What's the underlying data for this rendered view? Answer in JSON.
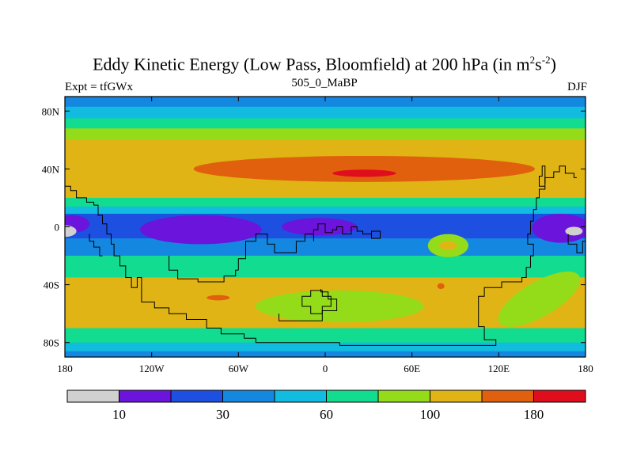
{
  "chart_data": {
    "type": "heatmap",
    "title": "Eddy Kinetic Energy (Low Pass, Bloomfield) at 200 hPa (in m",
    "title_units_exp1": "2",
    "title_units_mid": "s",
    "title_units_exp2": "-2",
    "title_close": ")",
    "left_subtitle": "Expt = tfGWx",
    "center_subtitle": "505_0_MaBP",
    "right_subtitle": "DJF",
    "xlim": [
      -180,
      180
    ],
    "ylim": [
      -90,
      90
    ],
    "x_ticks": [
      {
        "value": -180,
        "label": "180"
      },
      {
        "value": -120,
        "label": "120W"
      },
      {
        "value": -60,
        "label": "60W"
      },
      {
        "value": 0,
        "label": "0"
      },
      {
        "value": 60,
        "label": "60E"
      },
      {
        "value": 120,
        "label": "120E"
      },
      {
        "value": 180,
        "label": "180"
      }
    ],
    "y_ticks": [
      {
        "value": 80,
        "label": "80N"
      },
      {
        "value": 40,
        "label": "40N"
      },
      {
        "value": 0,
        "label": "0"
      },
      {
        "value": -40,
        "label": "40S"
      },
      {
        "value": -80,
        "label": "80S"
      }
    ],
    "levels": [
      10,
      20,
      30,
      45,
      60,
      80,
      100,
      140,
      180
    ],
    "colors": [
      "#d0d0d0",
      "#6a14dc",
      "#1d4fe0",
      "#1487e0",
      "#12bbe0",
      "#12dc90",
      "#94dc1a",
      "#e0b414",
      "#e0600e",
      "#e00e1c"
    ],
    "colorbar_labels": [
      {
        "value": 10,
        "index": 1,
        "label": "10"
      },
      {
        "value": 30,
        "index": 3,
        "label": "30"
      },
      {
        "value": 60,
        "index": 5,
        "label": "60"
      },
      {
        "value": 100,
        "index": 7,
        "label": "100"
      },
      {
        "value": 180,
        "index": 9,
        "label": "180"
      }
    ],
    "lat_bands": [
      {
        "lat": [
          90,
          83
        ],
        "value": 38
      },
      {
        "lat": [
          83,
          75
        ],
        "value": 50
      },
      {
        "lat": [
          75,
          68
        ],
        "value": 65
      },
      {
        "lat": [
          68,
          60
        ],
        "value": 90
      },
      {
        "lat": [
          60,
          20
        ],
        "value": 110
      },
      {
        "lat": [
          20,
          14
        ],
        "value": 70
      },
      {
        "lat": [
          14,
          9
        ],
        "value": 50
      },
      {
        "lat": [
          9,
          -8
        ],
        "value": 25
      },
      {
        "lat": [
          -8,
          -20
        ],
        "value": 40
      },
      {
        "lat": [
          -20,
          -35
        ],
        "value": 70
      },
      {
        "lat": [
          -35,
          -70
        ],
        "value": 110
      },
      {
        "lat": [
          -70,
          -80
        ],
        "value": 70
      },
      {
        "lat": [
          -80,
          -86
        ],
        "value": 50
      },
      {
        "lat": [
          -86,
          -90
        ],
        "value": 40
      }
    ],
    "features": [
      {
        "lon": 27,
        "lat": 40,
        "rlon": 118,
        "rlat": 9,
        "value": 160,
        "rot": 0
      },
      {
        "lon": 27,
        "lat": 37,
        "rlon": 22,
        "rlat": 2.5,
        "value": 200,
        "rot": 0
      },
      {
        "lon": -86,
        "lat": -2,
        "rlon": 42,
        "rlat": 10,
        "value": 15,
        "rot": 0
      },
      {
        "lon": -4,
        "lat": 0,
        "rlon": 26,
        "rlat": 6,
        "value": 15,
        "rot": 0
      },
      {
        "lon": 163,
        "lat": -1,
        "rlon": 20,
        "rlat": 10,
        "value": 15,
        "rot": 0
      },
      {
        "lon": -175,
        "lat": 2,
        "rlon": 12,
        "rlat": 6,
        "value": 15,
        "rot": 0
      },
      {
        "lon": -180,
        "lat": -3,
        "rlon": 8,
        "rlat": 4,
        "value": 5,
        "rot": 0
      },
      {
        "lon": 172,
        "lat": -3,
        "rlon": 6,
        "rlat": 3,
        "value": 5,
        "rot": 0
      },
      {
        "lon": 85,
        "lat": -13,
        "rlon": 14,
        "rlat": 8,
        "value": 80,
        "rot": 0
      },
      {
        "lon": 85,
        "lat": -13,
        "rlon": 6,
        "rlat": 3,
        "value": 110,
        "rot": 0
      },
      {
        "lon": 44,
        "lat": -14,
        "rlon": 8,
        "rlat": 3,
        "value": 40,
        "rot": 0
      },
      {
        "lon": -74,
        "lat": -49,
        "rlon": 8,
        "rlat": 1.8,
        "value": 160,
        "rot": 0
      },
      {
        "lon": 80,
        "lat": -41,
        "rlon": 2.5,
        "rlat": 2,
        "value": 160,
        "rot": 0
      },
      {
        "lon": 10,
        "lat": -55,
        "rlon": 58,
        "rlat": 11,
        "value": 90,
        "rot": 0
      },
      {
        "lon": 148,
        "lat": -50,
        "rlon": 32,
        "rlat": 12,
        "value": 90,
        "rot": -30
      }
    ],
    "coastlines": [
      [
        [
          -180,
          28
        ],
        [
          -176,
          28
        ],
        [
          -176,
          25
        ],
        [
          -172,
          25
        ],
        [
          -172,
          20
        ],
        [
          -165,
          20
        ],
        [
          -165,
          17
        ],
        [
          -160,
          17
        ],
        [
          -160,
          15
        ],
        [
          -157,
          15
        ],
        [
          -157,
          8
        ],
        [
          -154,
          8
        ],
        [
          -154,
          2
        ],
        [
          -151,
          2
        ],
        [
          -151,
          -5
        ],
        [
          -148,
          -5
        ],
        [
          -148,
          -12
        ],
        [
          -146,
          -12
        ],
        [
          -146,
          -20
        ],
        [
          -142,
          -20
        ],
        [
          -142,
          -27
        ],
        [
          -138,
          -27
        ],
        [
          -138,
          -35
        ],
        [
          -134,
          -35
        ],
        [
          -134,
          -42
        ],
        [
          -130,
          -42
        ],
        [
          -130,
          -35
        ],
        [
          -127,
          -35
        ],
        [
          -127,
          -52
        ],
        [
          -118,
          -52
        ],
        [
          -118,
          -56
        ],
        [
          -108,
          -56
        ],
        [
          -108,
          -60
        ],
        [
          -96,
          -60
        ],
        [
          -96,
          -64
        ],
        [
          -82,
          -64
        ],
        [
          -82,
          -70
        ],
        [
          -72,
          -70
        ],
        [
          -72,
          -74
        ],
        [
          -56,
          -74
        ],
        [
          -56,
          -77
        ],
        [
          -48,
          -77
        ],
        [
          -48,
          -80
        ],
        [
          10,
          -80
        ],
        [
          10,
          -82
        ],
        [
          118,
          -82
        ],
        [
          118,
          -78
        ],
        [
          110,
          -78
        ],
        [
          110,
          -69
        ],
        [
          106,
          -69
        ],
        [
          106,
          -48
        ],
        [
          110,
          -48
        ],
        [
          110,
          -42
        ],
        [
          122,
          -42
        ],
        [
          122,
          -38
        ],
        [
          136,
          -38
        ],
        [
          136,
          -35
        ],
        [
          139,
          -35
        ],
        [
          139,
          -28
        ],
        [
          142,
          -28
        ],
        [
          142,
          -20
        ],
        [
          144,
          -20
        ],
        [
          144,
          -12
        ],
        [
          140,
          -12
        ],
        [
          140,
          -5
        ],
        [
          142,
          -5
        ],
        [
          142,
          4
        ],
        [
          144,
          4
        ],
        [
          144,
          12
        ],
        [
          146,
          12
        ],
        [
          146,
          20
        ],
        [
          148,
          20
        ],
        [
          148,
          26
        ],
        [
          152,
          26
        ],
        [
          152,
          28
        ],
        [
          148,
          28
        ],
        [
          148,
          35
        ],
        [
          150,
          35
        ],
        [
          150,
          42
        ],
        [
          152,
          42
        ],
        [
          152,
          28
        ]
      ],
      [
        [
          -60,
          -30
        ],
        [
          -60,
          -22
        ],
        [
          -55,
          -22
        ],
        [
          -55,
          -10
        ],
        [
          -48,
          -10
        ],
        [
          -48,
          -5
        ],
        [
          -40,
          -5
        ],
        [
          -40,
          -12
        ],
        [
          -35,
          -12
        ],
        [
          -35,
          -18
        ],
        [
          -20,
          -18
        ],
        [
          -20,
          -10
        ],
        [
          -14,
          -10
        ],
        [
          -14,
          -5
        ],
        [
          -8,
          -5
        ],
        [
          -8,
          -2
        ],
        [
          -5,
          -2
        ],
        [
          -5,
          2
        ],
        [
          0,
          2
        ],
        [
          0,
          -4
        ],
        [
          5,
          -4
        ],
        [
          5,
          -2
        ],
        [
          8,
          -2
        ],
        [
          8,
          0
        ],
        [
          12,
          0
        ],
        [
          12,
          -5
        ],
        [
          18,
          -5
        ],
        [
          18,
          0
        ],
        [
          22,
          0
        ],
        [
          22,
          -3
        ],
        [
          26,
          -3
        ],
        [
          26,
          -5
        ],
        [
          32,
          -5
        ],
        [
          32,
          -3
        ],
        [
          38,
          -3
        ],
        [
          38,
          -8
        ],
        [
          32,
          -8
        ],
        [
          32,
          -5
        ]
      ],
      [
        [
          -108,
          -20
        ],
        [
          -108,
          -30
        ],
        [
          -102,
          -30
        ],
        [
          -102,
          -36
        ],
        [
          -88,
          -36
        ],
        [
          -88,
          -38
        ],
        [
          -70,
          -38
        ],
        [
          -70,
          -34
        ],
        [
          -62,
          -34
        ],
        [
          -62,
          -30
        ],
        [
          -60,
          -30
        ]
      ],
      [
        [
          -16,
          -55
        ],
        [
          -16,
          -48
        ],
        [
          -10,
          -48
        ],
        [
          -10,
          -44
        ],
        [
          -2,
          -44
        ],
        [
          -2,
          -48
        ],
        [
          4,
          -48
        ],
        [
          4,
          -55
        ],
        [
          -2,
          -55
        ],
        [
          -2,
          -60
        ],
        [
          -10,
          -60
        ],
        [
          -10,
          -55
        ],
        [
          -16,
          -55
        ]
      ],
      [
        [
          -8,
          -10
        ],
        [
          -8,
          -5
        ]
      ],
      [
        [
          -32,
          -60
        ],
        [
          -32,
          -65
        ],
        [
          -2,
          -65
        ],
        [
          -2,
          -58
        ],
        [
          8,
          -58
        ],
        [
          8,
          -50
        ],
        [
          2,
          -50
        ],
        [
          2,
          -45
        ],
        [
          -3,
          -45
        ],
        [
          -3,
          -43
        ]
      ],
      [
        [
          152,
          30
        ],
        [
          152,
          34
        ],
        [
          158,
          34
        ],
        [
          158,
          38
        ],
        [
          162,
          38
        ],
        [
          162,
          42
        ],
        [
          166,
          42
        ],
        [
          166,
          37
        ],
        [
          172,
          37
        ],
        [
          172,
          34
        ],
        [
          174,
          34
        ]
      ],
      [
        [
          -163,
          -5
        ],
        [
          -163,
          -10
        ],
        [
          -160,
          -10
        ],
        [
          -160,
          -14
        ],
        [
          -156,
          -14
        ],
        [
          -156,
          -20
        ],
        [
          -154,
          -20
        ]
      ],
      [
        [
          168,
          -5
        ],
        [
          168,
          -12
        ],
        [
          174,
          -12
        ],
        [
          174,
          -18
        ],
        [
          178,
          -18
        ],
        [
          178,
          -10
        ],
        [
          180,
          -10
        ]
      ]
    ]
  }
}
